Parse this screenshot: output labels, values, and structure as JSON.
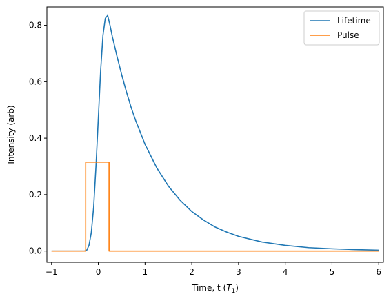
{
  "chart_data": {
    "type": "line",
    "xlabel": "Time, t (",
    "xlabel_var": "T",
    "xlabel_sub": "1",
    "xlabel_end": ")",
    "ylabel": "Intensity (arb)",
    "xlim": [
      -1.1,
      6.1
    ],
    "ylim": [
      -0.04,
      0.865
    ],
    "xticks": [
      -1,
      0,
      1,
      2,
      3,
      4,
      5,
      6
    ],
    "xtick_labels": [
      "−1",
      "0",
      "1",
      "2",
      "3",
      "4",
      "5",
      "6"
    ],
    "yticks": [
      0.0,
      0.2,
      0.4,
      0.6,
      0.8
    ],
    "ytick_labels": [
      "0.0",
      "0.2",
      "0.4",
      "0.6",
      "0.8"
    ],
    "grid": false,
    "legend_position": "top-right",
    "series": [
      {
        "name": "Lifetime",
        "color": "#1f77b4",
        "x": [
          -1.0,
          -0.5,
          -0.3,
          -0.25,
          -0.2,
          -0.15,
          -0.1,
          -0.05,
          0.0,
          0.05,
          0.1,
          0.15,
          0.2,
          0.25,
          0.3,
          0.4,
          0.5,
          0.6,
          0.7,
          0.8,
          1.0,
          1.25,
          1.5,
          1.75,
          2.0,
          2.25,
          2.5,
          2.75,
          3.0,
          3.5,
          4.0,
          4.5,
          5.0,
          5.5,
          6.0
        ],
        "y": [
          0.0,
          0.0,
          0.0,
          0.002,
          0.02,
          0.065,
          0.155,
          0.3,
          0.47,
          0.64,
          0.765,
          0.825,
          0.835,
          0.8,
          0.76,
          0.69,
          0.625,
          0.565,
          0.51,
          0.462,
          0.378,
          0.295,
          0.23,
          0.18,
          0.14,
          0.11,
          0.085,
          0.067,
          0.052,
          0.032,
          0.02,
          0.012,
          0.008,
          0.005,
          0.003
        ]
      },
      {
        "name": "Pulse",
        "color": "#ff7f0e",
        "x": [
          -1.0,
          -0.27,
          -0.27,
          0.23,
          0.23,
          6.0
        ],
        "y": [
          0.0,
          0.0,
          0.315,
          0.315,
          0.0,
          0.0
        ]
      }
    ]
  }
}
